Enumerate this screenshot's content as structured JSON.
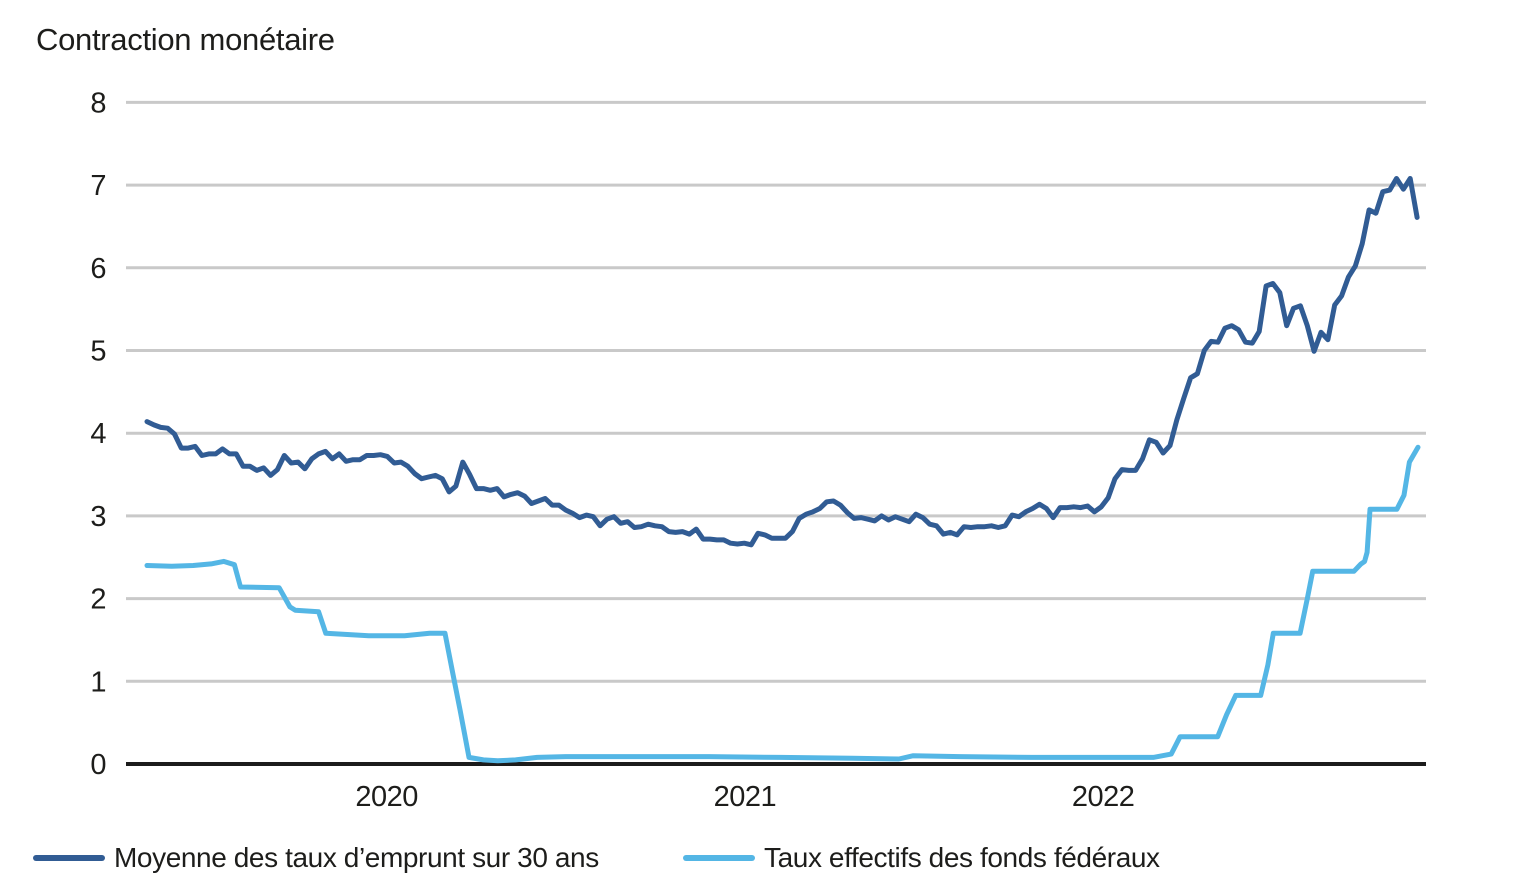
{
  "title": "Contraction monétaire",
  "chart_data": {
    "type": "line",
    "title": "Contraction monétaire",
    "x_unit": "decimal_year",
    "x_range": [
      2019.331,
      2022.879
    ],
    "xticks": [
      2020,
      2021,
      2022
    ],
    "ylim": [
      0,
      8
    ],
    "yticks": [
      8,
      7,
      6,
      5,
      4,
      3,
      2,
      1,
      0
    ],
    "grid": "horizontal",
    "grid_color": "#c9c9c9",
    "axis_color": "#1c1c1c",
    "text_color": "#1d1d1b",
    "legend_position": "bottom",
    "series": [
      {
        "name": "Moyenne des taux d’emprunt sur 30 ans",
        "color": "#315c94",
        "sampling": "weekly",
        "t_start": 2019.331,
        "t_step": 0.019165,
        "values": [
          4.14,
          4.1,
          4.07,
          4.06,
          3.99,
          3.82,
          3.82,
          3.84,
          3.73,
          3.75,
          3.75,
          3.81,
          3.75,
          3.75,
          3.6,
          3.6,
          3.55,
          3.58,
          3.49,
          3.56,
          3.73,
          3.64,
          3.65,
          3.57,
          3.69,
          3.75,
          3.78,
          3.69,
          3.75,
          3.66,
          3.68,
          3.68,
          3.73,
          3.73,
          3.74,
          3.72,
          3.64,
          3.65,
          3.6,
          3.51,
          3.45,
          3.47,
          3.49,
          3.45,
          3.29,
          3.36,
          3.65,
          3.5,
          3.33,
          3.33,
          3.31,
          3.33,
          3.23,
          3.26,
          3.28,
          3.24,
          3.15,
          3.18,
          3.21,
          3.13,
          3.13,
          3.07,
          3.03,
          2.98,
          3.01,
          2.99,
          2.88,
          2.96,
          2.99,
          2.91,
          2.93,
          2.86,
          2.87,
          2.9,
          2.88,
          2.87,
          2.81,
          2.8,
          2.81,
          2.78,
          2.84,
          2.72,
          2.72,
          2.71,
          2.71,
          2.67,
          2.66,
          2.67,
          2.65,
          2.79,
          2.77,
          2.73,
          2.73,
          2.73,
          2.81,
          2.97,
          3.02,
          3.05,
          3.09,
          3.17,
          3.18,
          3.13,
          3.04,
          2.97,
          2.98,
          2.96,
          2.94,
          3.0,
          2.95,
          2.99,
          2.96,
          2.93,
          3.02,
          2.98,
          2.9,
          2.88,
          2.78,
          2.8,
          2.77,
          2.87,
          2.86,
          2.87,
          2.87,
          2.88,
          2.86,
          2.88,
          3.01,
          2.99,
          3.05,
          3.09,
          3.14,
          3.09,
          2.98,
          3.1,
          3.1,
          3.11,
          3.1,
          3.12,
          3.05,
          3.11,
          3.22,
          3.45,
          3.56,
          3.55,
          3.55,
          3.69,
          3.92,
          3.89,
          3.76,
          3.85,
          4.16,
          4.42,
          4.67,
          4.72,
          5.0,
          5.11,
          5.1,
          5.27,
          5.3,
          5.25,
          5.1,
          5.09,
          5.23,
          5.78,
          5.81,
          5.7,
          5.3,
          5.51,
          5.54,
          5.3,
          4.99,
          5.22,
          5.13,
          5.55,
          5.66,
          5.89,
          6.02,
          6.29,
          6.7,
          6.66,
          6.92,
          6.94,
          7.08,
          6.95,
          7.08,
          6.61
        ]
      },
      {
        "name": "Taux effectifs des fonds fédéraux",
        "color": "#54b6e5",
        "sampling": "step_points",
        "points": [
          [
            2019.331,
            2.4
          ],
          [
            2019.4,
            2.39
          ],
          [
            2019.46,
            2.4
          ],
          [
            2019.51,
            2.42
          ],
          [
            2019.545,
            2.45
          ],
          [
            2019.575,
            2.41
          ],
          [
            2019.592,
            2.14
          ],
          [
            2019.7,
            2.13
          ],
          [
            2019.73,
            1.9
          ],
          [
            2019.745,
            1.86
          ],
          [
            2019.81,
            1.84
          ],
          [
            2019.83,
            1.58
          ],
          [
            2019.95,
            1.55
          ],
          [
            2020.05,
            1.55
          ],
          [
            2020.12,
            1.58
          ],
          [
            2020.163,
            1.58
          ],
          [
            2020.185,
            1.09
          ],
          [
            2020.205,
            0.65
          ],
          [
            2020.23,
            0.08
          ],
          [
            2020.27,
            0.05
          ],
          [
            2020.31,
            0.04
          ],
          [
            2020.36,
            0.05
          ],
          [
            2020.42,
            0.08
          ],
          [
            2020.5,
            0.09
          ],
          [
            2020.7,
            0.09
          ],
          [
            2020.9,
            0.09
          ],
          [
            2021.1,
            0.08
          ],
          [
            2021.3,
            0.07
          ],
          [
            2021.43,
            0.06
          ],
          [
            2021.47,
            0.1
          ],
          [
            2021.6,
            0.09
          ],
          [
            2021.8,
            0.08
          ],
          [
            2022.0,
            0.08
          ],
          [
            2022.14,
            0.08
          ],
          [
            2022.19,
            0.12
          ],
          [
            2022.215,
            0.33
          ],
          [
            2022.32,
            0.33
          ],
          [
            2022.345,
            0.6
          ],
          [
            2022.37,
            0.83
          ],
          [
            2022.44,
            0.83
          ],
          [
            2022.46,
            1.2
          ],
          [
            2022.475,
            1.58
          ],
          [
            2022.55,
            1.58
          ],
          [
            2022.57,
            2.0
          ],
          [
            2022.585,
            2.33
          ],
          [
            2022.7,
            2.33
          ],
          [
            2022.72,
            2.42
          ],
          [
            2022.73,
            2.45
          ],
          [
            2022.737,
            2.56
          ],
          [
            2022.745,
            3.08
          ],
          [
            2022.82,
            3.08
          ],
          [
            2022.84,
            3.25
          ],
          [
            2022.855,
            3.65
          ],
          [
            2022.879,
            3.83
          ]
        ]
      }
    ]
  },
  "legend": {
    "items": [
      {
        "label": "Moyenne des taux d’emprunt sur 30 ans"
      },
      {
        "label": "Taux effectifs des fonds fédéraux"
      }
    ]
  }
}
